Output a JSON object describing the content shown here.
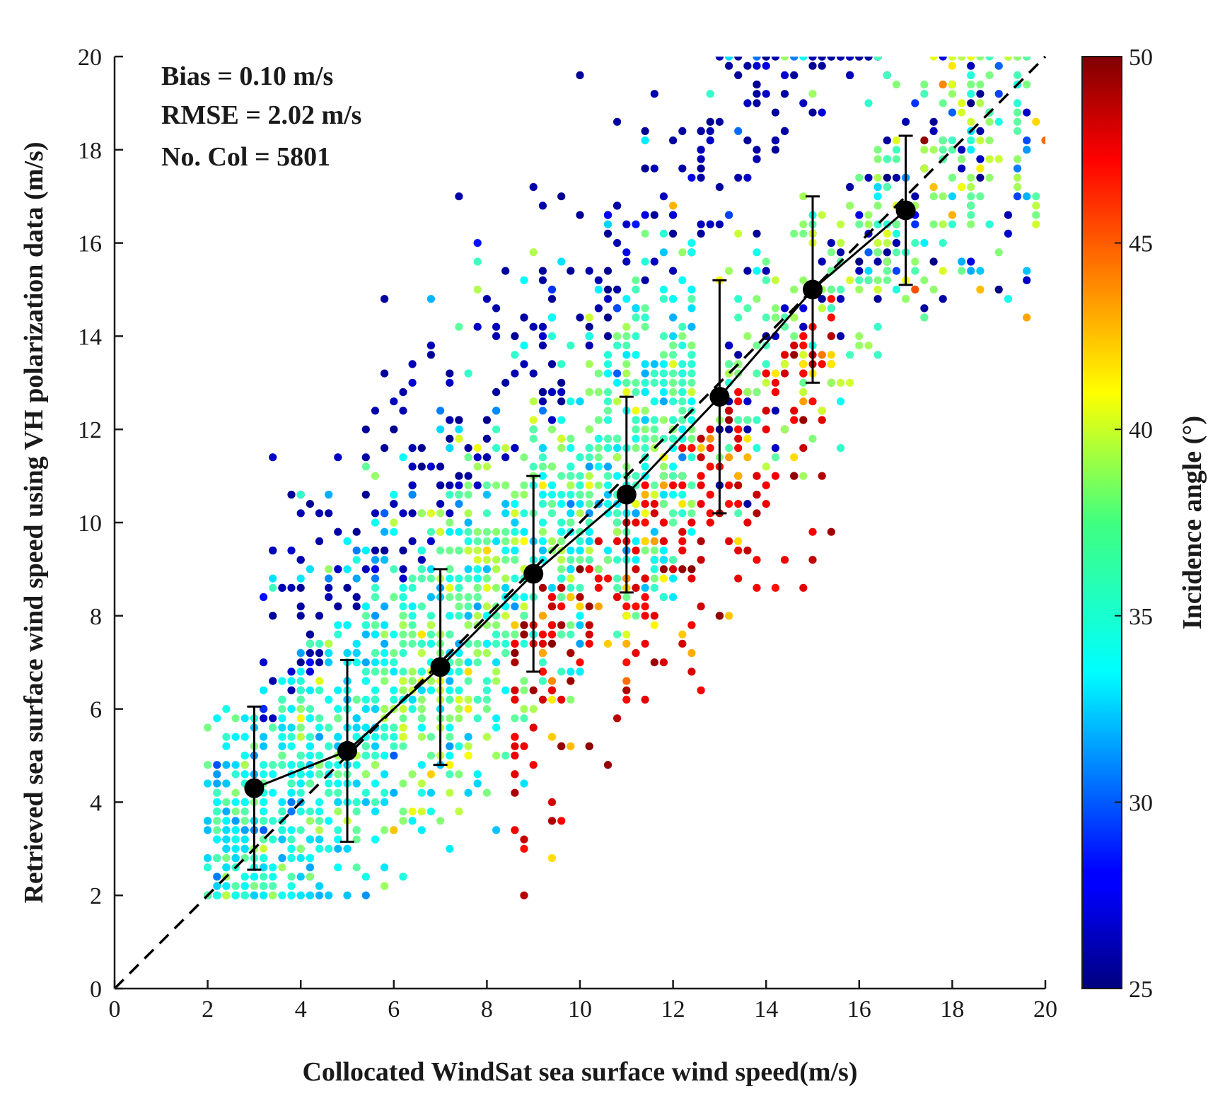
{
  "chart_data": {
    "type": "scatter",
    "xlabel": "Collocated WindSat sea surface wind speed(m/s)",
    "ylabel": "Retrieved sea surface wind speed using VH polarization data (m/s)",
    "xlim": [
      0,
      20
    ],
    "ylim": [
      0,
      20
    ],
    "xticks": [
      "0",
      "2",
      "4",
      "6",
      "8",
      "10",
      "12",
      "14",
      "16",
      "18",
      "20"
    ],
    "yticks": [
      "0",
      "2",
      "4",
      "6",
      "8",
      "10",
      "12",
      "14",
      "16",
      "18",
      "20"
    ],
    "grid": false,
    "annotations": [
      "Bias = 0.10 m/s",
      "RMSE = 2.02 m/s",
      "No. Col = 5801"
    ],
    "reference_line": {
      "name": "1:1 line",
      "style": "dashed",
      "color": "#000000",
      "from": [
        0,
        0
      ],
      "to": [
        20,
        20
      ]
    },
    "binned_mean": {
      "name": "Binned mean ± std",
      "x": [
        3,
        5,
        7,
        9,
        11,
        13,
        15,
        17
      ],
      "y": [
        4.3,
        5.1,
        6.9,
        8.9,
        10.6,
        12.7,
        15.0,
        16.7
      ],
      "std": [
        1.75,
        1.95,
        2.1,
        2.1,
        2.1,
        2.5,
        2.0,
        1.6
      ]
    },
    "scatter": {
      "name": "Collocations",
      "count": 5801,
      "color_variable": "Incidence angle (°)",
      "x_range": [
        2,
        20
      ],
      "y_range": [
        2,
        20
      ],
      "clusters": [
        {
          "region": "low wind, high density",
          "x": [
            2,
            9
          ],
          "y": [
            2,
            9
          ],
          "incidence_angle": [
            33,
            38
          ]
        },
        {
          "region": "over-estimation tail",
          "x": [
            6,
            17
          ],
          "y": [
            10,
            20
          ],
          "incidence_angle": [
            25,
            27
          ]
        },
        {
          "region": "under-estimation tail",
          "x": [
            9,
            16
          ],
          "y": [
            5,
            14
          ],
          "incidence_angle": [
            45,
            50
          ]
        },
        {
          "region": "high wind",
          "x": [
            15,
            20
          ],
          "y": [
            14,
            20
          ],
          "incidence_angle": [
            35,
            40
          ]
        }
      ]
    },
    "colorbar": {
      "label": "Incidence angle (°)",
      "range": [
        25,
        50
      ],
      "ticks": [
        "25",
        "30",
        "35",
        "40",
        "45",
        "50"
      ],
      "colormap": "jet"
    }
  },
  "colors": {
    "marker": "#000000",
    "axis": "#1a1a1a"
  }
}
